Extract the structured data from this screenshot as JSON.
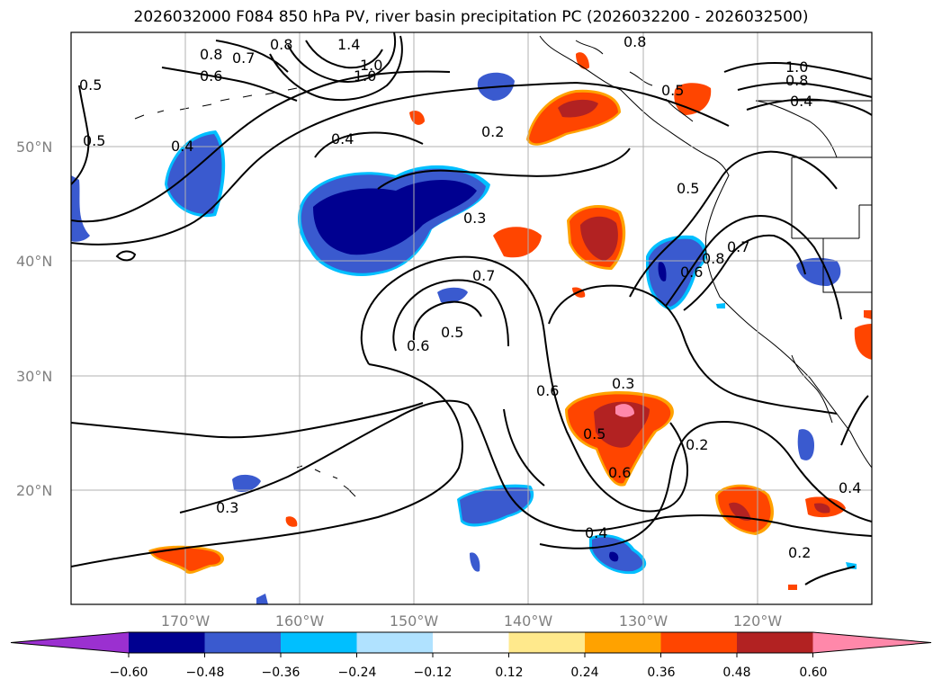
{
  "title": "2026032000 F084 850 hPa PV, river basin precipitation PC (2026032200 - 2026032500)",
  "lat_labels": [
    "50°N",
    "40°N",
    "30°N",
    "20°N"
  ],
  "lon_labels": [
    "170°W",
    "160°W",
    "150°W",
    "140°W",
    "130°W",
    "120°W"
  ],
  "colorbar": {
    "ticks": [
      "−0.60",
      "−0.48",
      "−0.36",
      "−0.24",
      "−0.12",
      "0.12",
      "0.24",
      "0.36",
      "0.48",
      "0.60"
    ],
    "colors": [
      "#9b30d0",
      "#000090",
      "#3a5acf",
      "#00bfff",
      "#b0e2ff",
      "#ffffff",
      "#ffe98c",
      "#ffa200",
      "#ff4500",
      "#b22222",
      "#ff88aa"
    ]
  },
  "contour_labels": [
    "0.8",
    "1.4",
    "0.7",
    "1.0",
    "0.6",
    "0.4",
    "0.5",
    "0.2",
    "0.3",
    "0.7",
    "0.6",
    "0.5",
    "0.6",
    "0.3",
    "0.5",
    "0.6",
    "0.2",
    "0.4",
    "0.2",
    "0.4",
    "0.8",
    "0.5",
    "0.5",
    "0.8",
    "0.6",
    "0.7",
    "1.0",
    "0.8",
    "0.4",
    "0.3",
    "0.4",
    "0.5",
    "0.8",
    "1.0"
  ]
}
